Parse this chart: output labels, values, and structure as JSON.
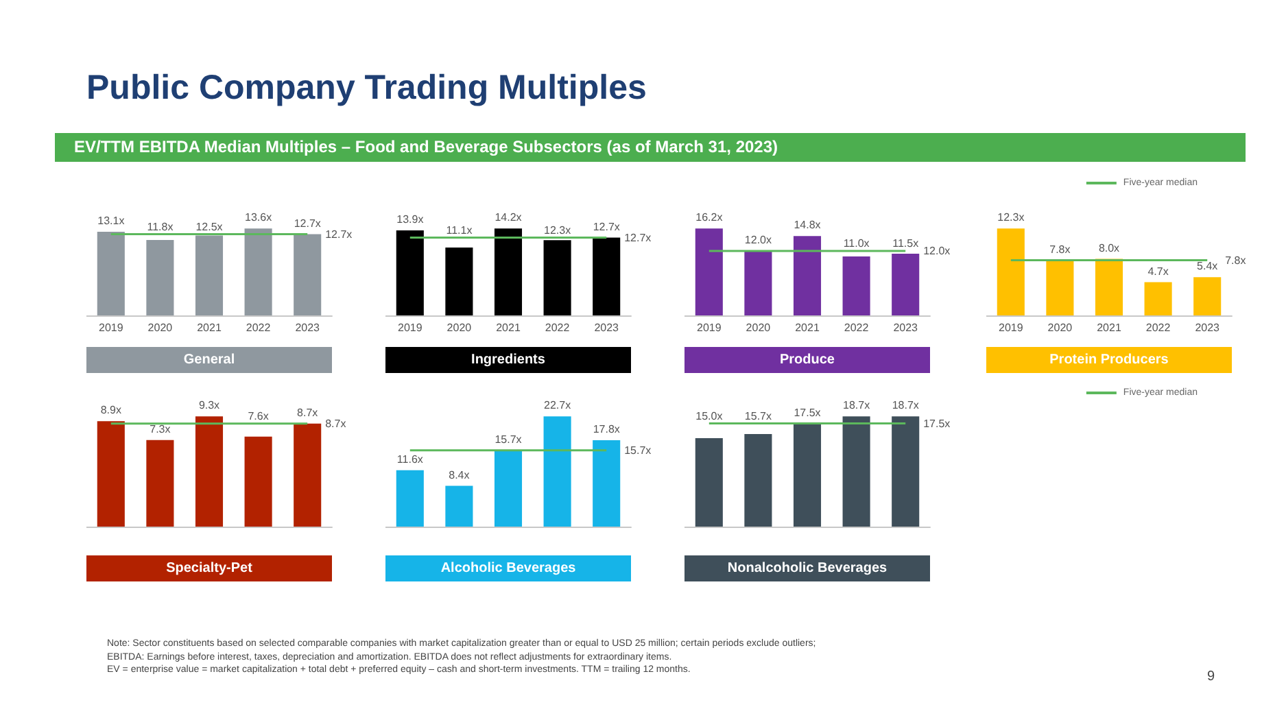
{
  "chart_data": [
    {
      "type": "other",
      "title": "Public Company Trading Multiples",
      "subtitle": "EV/TTM EBITDA Median Multiples – Food and Beverage Subsectors (as of March 31, 2023)",
      "annotations": [
        "Note: Sector constituents based on selected comparable companies with market capitalization greater than or equal to USD 25 million; certain periods exclude outliers;",
        "EBITDA: Earnings before interest, taxes, depreciation and amortization. EBITDA does not reflect adjustments for extraordinary items.",
        "EV = enterprise value = market capitalization + total debt + preferred equity – cash and short-term investments. TTM = trailing 12 months.",
        "9"
      ]
    },
    {
      "type": "bar",
      "title": "General",
      "categories": [
        "2019",
        "2020",
        "2021",
        "2022",
        "2023"
      ],
      "marker": "none",
      "legend": false,
      "series": [
        {
          "type": "bar",
          "color": "#8f989f",
          "values": [
            13.1,
            11.8,
            12.5,
            13.6,
            12.7
          ],
          "value_labels": [
            "13.1x",
            "11.8x",
            "12.5x",
            "13.6x",
            "12.7x"
          ]
        },
        {
          "type": "line",
          "color": "#5cb85c",
          "values": [
            12.7,
            12.7,
            12.7,
            12.7,
            12.7
          ],
          "value_labels": [
            null,
            null,
            null,
            null,
            "12.7x"
          ]
        }
      ]
    },
    {
      "type": "bar",
      "title": "Ingredients",
      "categories": [
        "2019",
        "2020",
        "2021",
        "2022",
        "2023"
      ],
      "marker": "none",
      "legend": false,
      "series": [
        {
          "type": "bar",
          "color": "#000000",
          "values": [
            13.9,
            11.1,
            14.2,
            12.3,
            12.7
          ],
          "value_labels": [
            "13.9x",
            "11.1x",
            "14.2x",
            "12.3x",
            "12.7x"
          ]
        },
        {
          "type": "line",
          "color": "#5cb85c",
          "values": [
            12.7,
            12.7,
            12.7,
            12.7,
            12.7
          ],
          "value_labels": [
            null,
            null,
            null,
            null,
            "12.7x"
          ]
        }
      ]
    },
    {
      "type": "bar",
      "title": "Produce",
      "categories": [
        "2019",
        "2020",
        "2021",
        "2022",
        "2023"
      ],
      "marker": "none",
      "legend": false,
      "series": [
        {
          "type": "bar",
          "color": "#7030a0",
          "values": [
            16.2,
            12.0,
            14.8,
            11.0,
            11.5
          ],
          "value_labels": [
            "16.2x",
            "12.0x",
            "14.8x",
            "11.0x",
            "11.5x"
          ]
        },
        {
          "type": "line",
          "color": "#5cb85c",
          "values": [
            12.0,
            12.0,
            12.0,
            12.0,
            12.0
          ],
          "value_labels": [
            null,
            null,
            null,
            null,
            "12.0x"
          ]
        }
      ]
    },
    {
      "type": "bar",
      "title": "Protein Producers",
      "categories": [
        "2019",
        "2020",
        "2021",
        "2022",
        "2023"
      ],
      "marker": "none",
      "legend": "top right",
      "series": [
        {
          "type": "bar",
          "color": "#ffc000",
          "values": [
            12.3,
            7.8,
            8.0,
            4.7,
            5.4
          ],
          "value_labels": [
            "12.3x",
            "7.8x",
            "8.0x",
            "4.7x",
            "5.4x"
          ]
        },
        {
          "type": "line",
          "name": "Five-year median",
          "color": "#5cb85c",
          "values": [
            7.8,
            7.8,
            7.8,
            7.8,
            7.8
          ],
          "value_labels": [
            null,
            null,
            null,
            null,
            "7.8x"
          ]
        }
      ]
    },
    {
      "type": "bar",
      "title": "Specialty-Pet",
      "categories": [
        "2019",
        "2020",
        "2021",
        "2022",
        "2023"
      ],
      "tick_labels": false,
      "marker": "none",
      "legend": false,
      "series": [
        {
          "type": "bar",
          "color": "#b22200",
          "values": [
            8.9,
            7.3,
            9.3,
            7.6,
            8.7
          ],
          "value_labels": [
            "8.9x",
            "7.3x",
            "9.3x",
            "7.6x",
            "8.7x"
          ]
        },
        {
          "type": "line",
          "color": "#5cb85c",
          "values": [
            8.7,
            8.7,
            8.7,
            8.7,
            8.7
          ],
          "value_labels": [
            null,
            null,
            null,
            null,
            "8.7x"
          ]
        }
      ]
    },
    {
      "type": "bar",
      "title": "Alcoholic Beverages",
      "categories": [
        "2019",
        "2020",
        "2021",
        "2022",
        "2023"
      ],
      "tick_labels": false,
      "marker": "none",
      "legend": false,
      "series": [
        {
          "type": "bar",
          "color": "#16b4e8",
          "values": [
            11.6,
            8.4,
            15.7,
            22.7,
            17.8
          ],
          "value_labels": [
            "11.6x",
            "8.4x",
            "15.7x",
            "22.7x",
            "17.8x"
          ]
        },
        {
          "type": "line",
          "color": "#5cb85c",
          "values": [
            15.7,
            15.7,
            15.7,
            15.7,
            15.7
          ],
          "value_labels": [
            null,
            null,
            null,
            null,
            "15.7x"
          ]
        }
      ]
    },
    {
      "type": "bar",
      "title": "Nonalcoholic Beverages",
      "categories": [
        "2019",
        "2020",
        "2021",
        "2022",
        "2023"
      ],
      "tick_labels": false,
      "marker": "none",
      "legend": "top right",
      "series": [
        {
          "type": "bar",
          "color": "#3f4f5a",
          "values": [
            15.0,
            15.7,
            17.5,
            18.7,
            18.7
          ],
          "value_labels": [
            "15.0x",
            "15.7x",
            "17.5x",
            "18.7x",
            "18.7x"
          ]
        },
        {
          "type": "line",
          "name": "Five-year median",
          "color": "#5cb85c",
          "values": [
            17.5,
            17.5,
            17.5,
            17.5,
            17.5
          ],
          "value_labels": [
            null,
            null,
            null,
            null,
            "17.5x"
          ]
        }
      ]
    }
  ]
}
